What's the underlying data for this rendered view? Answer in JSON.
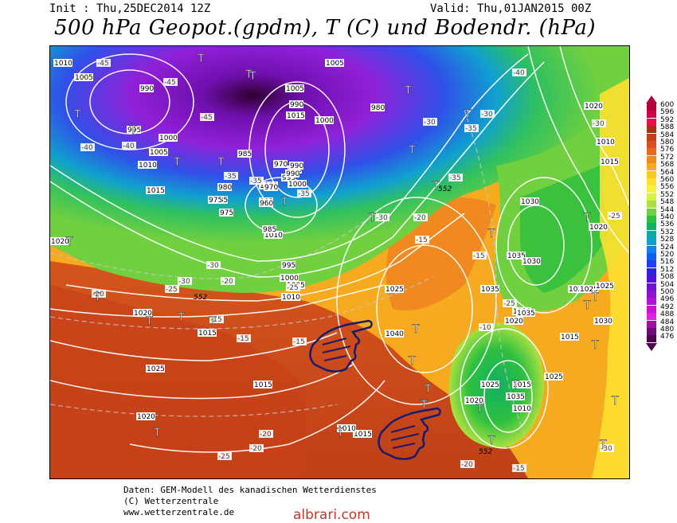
{
  "header": {
    "init": "Init : Thu,25DEC2014 12Z",
    "valid": "Valid: Thu,01JAN2015 00Z",
    "title": "500 hPa Geopot.(gpdm), T (C) und Bodendr. (hPa)"
  },
  "legend": {
    "values": [
      "600",
      "596",
      "592",
      "588",
      "584",
      "580",
      "576",
      "572",
      "568",
      "564",
      "560",
      "556",
      "552",
      "548",
      "544",
      "540",
      "536",
      "532",
      "528",
      "524",
      "520",
      "516",
      "512",
      "508",
      "504",
      "500",
      "496",
      "492",
      "488",
      "484",
      "480",
      "476"
    ],
    "colors": [
      "#b0003c",
      "#d0004a",
      "#e8104a",
      "#a83010",
      "#c04018",
      "#d85020",
      "#e86a20",
      "#f08a20",
      "#f6aa20",
      "#fbc820",
      "#fde030",
      "#f8f040",
      "#d8f040",
      "#a8e040",
      "#70d040",
      "#30c040",
      "#10b060",
      "#10a8a0",
      "#10a0d0",
      "#1080e8",
      "#1060f0",
      "#2040f0",
      "#3020e0",
      "#5010d8",
      "#7010d0",
      "#9010d0",
      "#b010d8",
      "#d010d8",
      "#e020e0",
      "#a010a0",
      "#700878",
      "#500050"
    ]
  },
  "pressure_labels": [
    "1010",
    "1005",
    "990",
    "995",
    "1000",
    "1005",
    "1010",
    "1015",
    "1005",
    "985",
    "1005",
    "990",
    "1015",
    "1000",
    "985",
    "980",
    "985",
    "990",
    "995",
    "1000",
    "1010",
    "1015",
    "1020",
    "1025",
    "1030",
    "1035",
    "1040",
    "1035",
    "1030",
    "1025",
    "1020",
    "1015",
    "1010",
    "1035",
    "1015",
    "1010",
    "1020",
    "1025",
    "1020",
    "1015",
    "980",
    "975",
    "970",
    "960",
    "1000",
    "990",
    "975",
    "970",
    "985",
    "990",
    "995",
    "1000",
    "1005",
    "1010",
    "1015",
    "1020",
    "1025",
    "1030",
    "1025",
    "1020",
    "1015",
    "1010",
    "1020",
    "1030",
    "1035",
    "1025",
    "1020"
  ],
  "temp_labels": [
    "-45",
    "-45",
    "-45",
    "-40",
    "-40",
    "-35",
    "-35",
    "-35",
    "-30",
    "-30",
    "-30",
    "-25",
    "-25",
    "-20",
    "-20",
    "-15",
    "-15",
    "-15",
    "-15",
    "-20",
    "-20",
    "-25",
    "-30",
    "-30",
    "-35",
    "-40",
    "-35",
    "-30",
    "-25",
    "-20",
    "-15",
    "-10",
    "-25",
    "-30",
    "-20",
    "-15"
  ],
  "markers": {
    "low": "T",
    "contour_552": "552"
  },
  "footer": {
    "line1": "Daten: GEM-Modell des kanadischen Wetterdienstes",
    "line2": "(C) Wetterzentrale",
    "line3": "www.wetterzentrale.de"
  },
  "watermark": "albrari.com"
}
